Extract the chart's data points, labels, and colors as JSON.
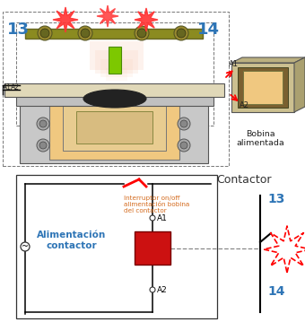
{
  "bg_color": "#ffffff",
  "label_13": "13",
  "label_14": "14",
  "label_A1": "A1",
  "label_A2": "A2",
  "label_bobina": "Bobina\nalimentada",
  "label_contactor": "Contactor",
  "label_alimentacion": "Alimentación\ncontactor",
  "label_interruptor": "Interruptor on/off\nalimentación bobina\ndel contactor",
  "color_blue": "#2e75b6",
  "color_orange": "#d46b1e",
  "color_red_fill": "#cc1111",
  "color_green": "#7dc800",
  "color_gray": "#c0c0c0",
  "color_dark": "#444444",
  "color_beige": "#f0c880",
  "color_olive": "#8b8b20",
  "color_pink": "#f8c8b0"
}
